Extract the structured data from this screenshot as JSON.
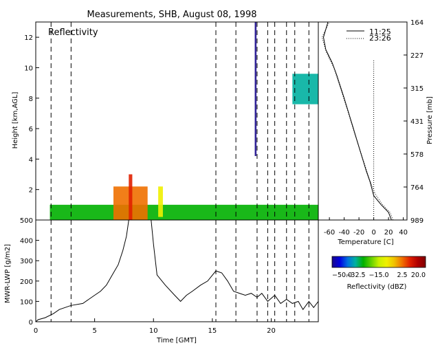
{
  "title": "Measurements, SHB, August 08, 1998",
  "chart_data": [
    {
      "type": "heatmap",
      "panel_label": "Reflectivity",
      "ylabel": "Height [km,AGL]",
      "xlim": [
        0,
        24
      ],
      "ylim": [
        0,
        13
      ],
      "yticks": [
        2,
        4,
        6,
        8,
        10,
        12
      ],
      "xticks": [
        0,
        5,
        10,
        15,
        20
      ],
      "right_axis": {
        "label": "Pressure [mb]",
        "ticks": [
          "164",
          "227",
          "315",
          "431",
          "578",
          "764",
          "989"
        ]
      },
      "dashed_times": [
        1.3,
        3.0,
        15.3,
        17.0,
        18.8,
        19.7,
        20.3,
        21.3,
        22.0,
        23.2
      ],
      "regions": [
        {
          "t0": 1.2,
          "t1": 24.0,
          "h0": 0.0,
          "h1": 1.0,
          "dbz": -25,
          "desc": "low layer"
        },
        {
          "t0": 6.6,
          "t1": 9.5,
          "h0": 0.0,
          "h1": 2.2,
          "dbz": 5,
          "desc": "convective core"
        },
        {
          "t0": 7.9,
          "t1": 8.2,
          "h0": 0.0,
          "h1": 3.0,
          "dbz": 8,
          "desc": "tower"
        },
        {
          "t0": 10.4,
          "t1": 10.8,
          "h0": 0.2,
          "h1": 2.2,
          "dbz": -10,
          "desc": "tower"
        },
        {
          "t0": 21.8,
          "t1": 24.0,
          "h0": 7.6,
          "h1": 9.6,
          "dbz": -30,
          "desc": "cirrus"
        },
        {
          "t0": 18.6,
          "t1": 18.75,
          "h0": 4.2,
          "h1": 13.0,
          "dbz": -50,
          "desc": "spike"
        }
      ]
    },
    {
      "type": "line",
      "xlabel": "",
      "ylabel": "Temperature [C]",
      "xlim": [
        -75,
        45
      ],
      "xticks": [
        -60,
        -40,
        -20,
        0,
        20,
        40
      ],
      "series": [
        {
          "name": "11:25",
          "style": "solid",
          "x": [
            24,
            20,
            10,
            0,
            -5,
            -10,
            -20,
            -30,
            -40,
            -50,
            -56,
            -65,
            -68,
            -62
          ],
          "y": [
            0,
            0.5,
            1.0,
            1.6,
            2.5,
            3.2,
            4.8,
            6.4,
            8.0,
            9.5,
            10.3,
            11.2,
            12.0,
            13.0
          ]
        },
        {
          "name": "23:26",
          "style": "dotted",
          "x": [
            26,
            22,
            12,
            2,
            -6,
            -16,
            -26,
            -36,
            -46,
            -54,
            -64,
            -70,
            -60
          ],
          "y": [
            0,
            0.5,
            1.0,
            1.7,
            2.7,
            4.2,
            5.7,
            7.3,
            8.8,
            10.0,
            11.0,
            12.0,
            13.0
          ]
        },
        {
          "name": "",
          "style": "dotted",
          "x": [
            0,
            0
          ],
          "y": [
            0,
            10.5
          ]
        }
      ]
    },
    {
      "type": "line",
      "ylabel": "MWR-LWP [g/m2]",
      "xlabel": "Time [GMT]",
      "xlim": [
        0,
        24
      ],
      "ylim": [
        0,
        500
      ],
      "yticks": [
        0,
        100,
        200,
        300,
        400,
        500
      ],
      "xticks": [
        0,
        5,
        10,
        15,
        20
      ],
      "dashed_times": [
        1.3,
        3.0,
        15.3,
        17.0,
        18.8,
        19.7,
        20.3,
        21.3,
        22.0,
        23.2
      ],
      "series": [
        {
          "name": "",
          "x": [
            0,
            0.2,
            0.8,
            1.5,
            2.0,
            3.0,
            4.0,
            4.5,
            5.0,
            5.5,
            6.0,
            6.5,
            7.0,
            7.4,
            7.7,
            7.9,
            9.8,
            10.0,
            10.3,
            11.0,
            11.8,
            12.3,
            12.8,
            13.3,
            14.0,
            14.6,
            15.3,
            15.8,
            16.3,
            16.8,
            17.3,
            17.8,
            18.3,
            18.8,
            19.2,
            19.7,
            20.3,
            20.8,
            21.3,
            21.8,
            22.3,
            22.7,
            23.2,
            23.6,
            24.0
          ],
          "y": [
            0,
            10,
            20,
            40,
            60,
            80,
            90,
            110,
            130,
            150,
            180,
            230,
            280,
            350,
            420,
            500,
            500,
            380,
            230,
            180,
            130,
            100,
            130,
            150,
            180,
            200,
            250,
            240,
            200,
            150,
            140,
            130,
            140,
            120,
            140,
            100,
            130,
            90,
            110,
            90,
            100,
            60,
            100,
            70,
            100
          ]
        }
      ]
    }
  ],
  "colorbar": {
    "label": "Reflectivity (dBZ)",
    "min": -50,
    "max": 20,
    "tick_labels": [
      "−50.0",
      "−32.5",
      "−15.0",
      "2.5",
      "20.0"
    ],
    "stops": [
      "#1a0a8c",
      "#0000e0",
      "#0070e0",
      "#00b0a0",
      "#00b000",
      "#60d000",
      "#c8f000",
      "#f0f000",
      "#f0c000",
      "#f07000",
      "#e02000",
      "#b00000",
      "#800000"
    ]
  }
}
